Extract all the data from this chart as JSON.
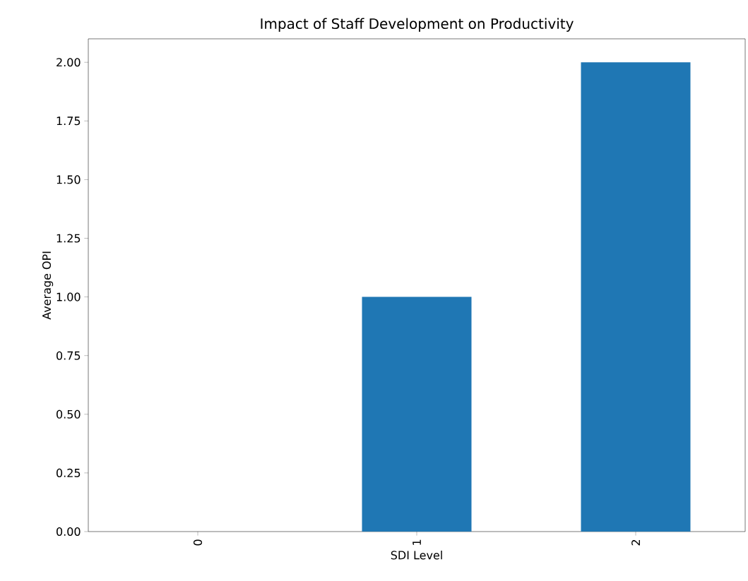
{
  "chart_data": {
    "type": "bar",
    "title": "Impact of Staff Development on Productivity",
    "xlabel": "SDI Level",
    "ylabel": "Average OPI",
    "categories": [
      "0",
      "1",
      "2"
    ],
    "values": [
      0,
      1,
      2
    ],
    "color": "#1f77b4",
    "ylim": [
      0,
      2.1
    ],
    "yticks": [
      {
        "value": 0,
        "label": "0.00"
      },
      {
        "value": 0.25,
        "label": "0.25"
      },
      {
        "value": 0.5,
        "label": "0.50"
      },
      {
        "value": 0.75,
        "label": "0.75"
      },
      {
        "value": 1,
        "label": "1.00"
      },
      {
        "value": 1.25,
        "label": "1.25"
      },
      {
        "value": 1.5,
        "label": "1.50"
      },
      {
        "value": 1.75,
        "label": "1.75"
      },
      {
        "value": 2,
        "label": "2.00"
      }
    ]
  }
}
